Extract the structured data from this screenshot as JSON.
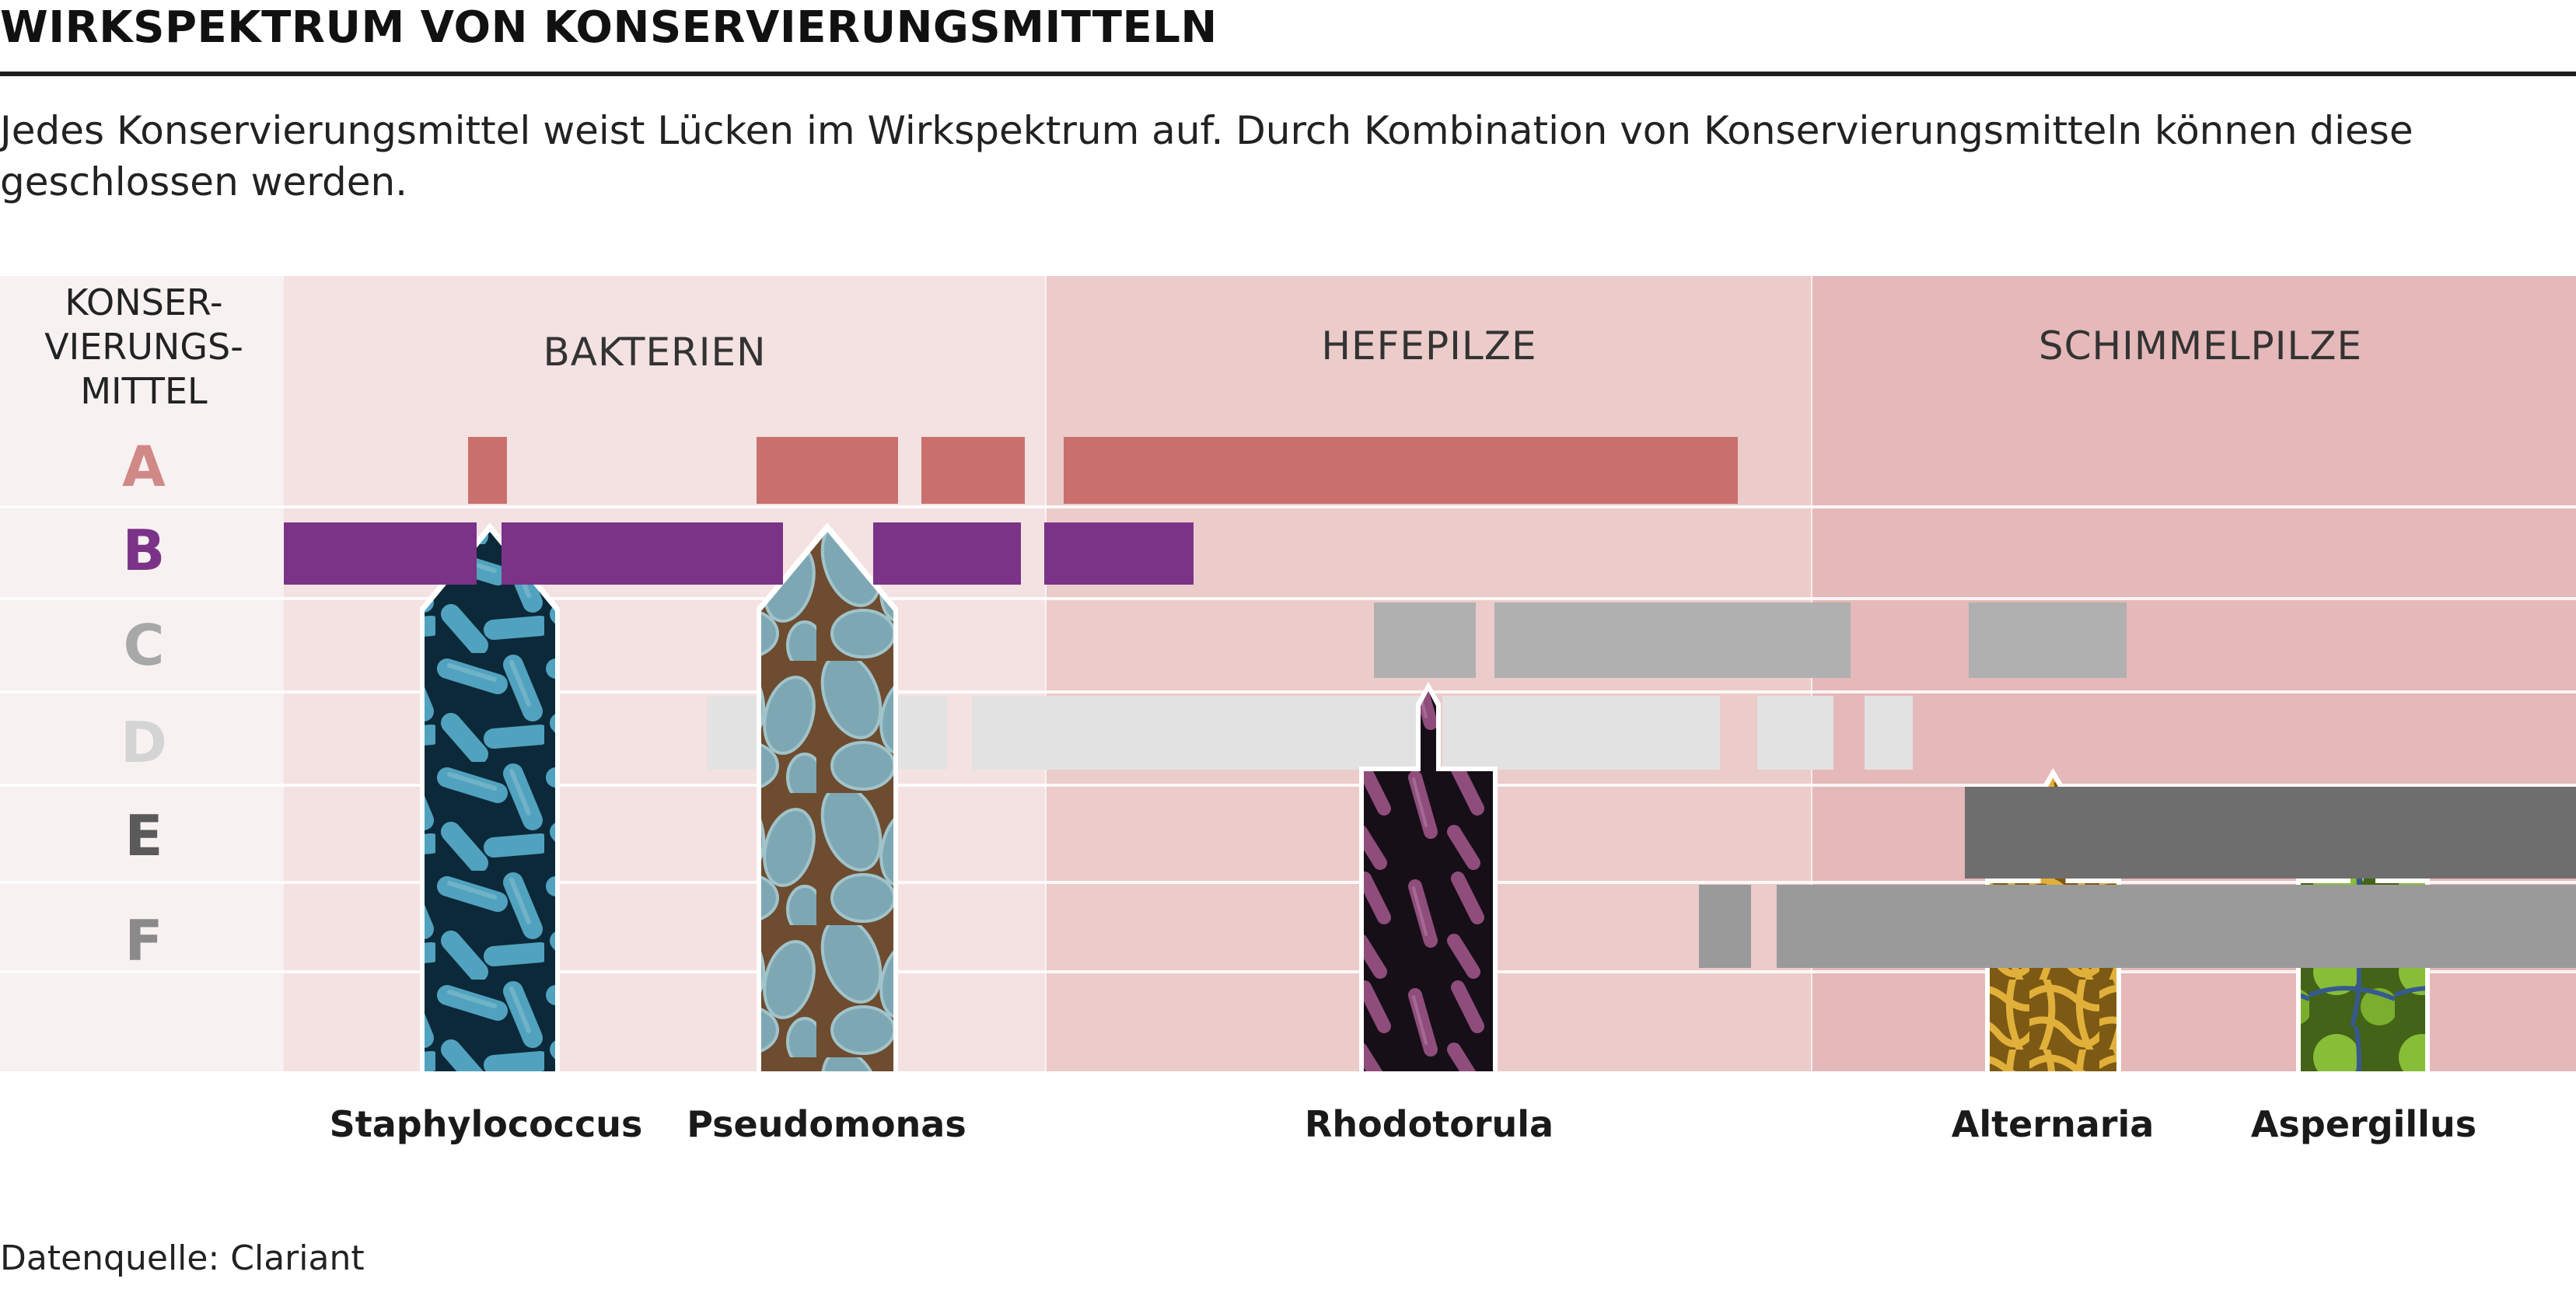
{
  "title": "WIRKSPEKTRUM VON KONSERVIERUNGSMITTELN",
  "subtitle": "Jedes Konservierungsmittel weist Lücken im Wirkspektrum auf. Durch Kombination von Konservierungsmitteln können diese geschlossen werden.",
  "source": "Datenquelle: Clariant",
  "chart_data": {
    "type": "range-bar",
    "title": "WIRKSPEKTRUM VON KONSERVIERUNGSMITTELN",
    "row_header": [
      "KONSER-",
      "VIERUNGS-",
      "MITTEL"
    ],
    "groups": [
      {
        "label": "BAKTERIEN",
        "color": "#f4e1e1"
      },
      {
        "label": "HEFEPILZE",
        "color": "#eccbcb"
      },
      {
        "label": "SCHIMMELPILZE",
        "color": "#e5b8b9"
      }
    ],
    "rows": [
      {
        "label": "A",
        "color": "#c9706d",
        "label_color": "#d08986"
      },
      {
        "label": "B",
        "color": "#7b3387",
        "label_color": "#7b3387"
      },
      {
        "label": "C",
        "color": "#b0b0b0",
        "label_color": "#a8a8a8"
      },
      {
        "label": "D",
        "color": "#e2e2e2",
        "label_color": "#d4d4d4"
      },
      {
        "label": "E",
        "color": "#6e6e6e",
        "label_color": "#5a5a5a"
      },
      {
        "label": "F",
        "color": "#9a9a9a",
        "label_color": "#8a8a8a"
      }
    ],
    "organisms": [
      {
        "name": "Staphylococcus",
        "group": "BAKTERIEN",
        "image": "blue-rod-bacteria"
      },
      {
        "name": "Pseudomonas",
        "group": "BAKTERIEN",
        "image": "blue-oval-bacteria"
      },
      {
        "name": "Rhodotorula",
        "group": "HEFEPILZE",
        "image": "purple-yeast"
      },
      {
        "name": "Alternaria",
        "group": "SCHIMMELPILZE",
        "image": "yellow-hyphae"
      },
      {
        "name": "Aspergillus",
        "group": "SCHIMMELPILZE",
        "image": "green-spores"
      }
    ]
  }
}
